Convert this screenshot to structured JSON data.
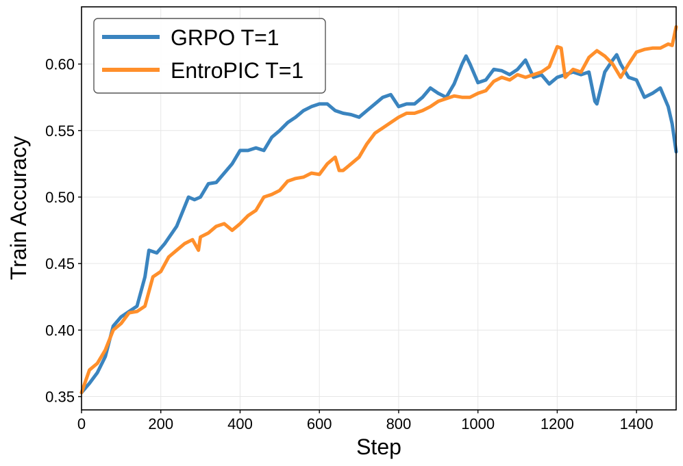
{
  "chart_data": {
    "type": "line",
    "title": "",
    "xlabel": "Step",
    "ylabel": "Train Accuracy",
    "xlim": [
      0,
      1500
    ],
    "ylim": [
      0.34,
      0.643
    ],
    "xticks": [
      0,
      200,
      400,
      600,
      800,
      1000,
      1200,
      1400
    ],
    "xtick_labels": [
      "0",
      "200",
      "400",
      "600",
      "800",
      "1000",
      "1200",
      "1400"
    ],
    "yticks": [
      0.35,
      0.4,
      0.45,
      0.5,
      0.55,
      0.6
    ],
    "ytick_labels": [
      "0.35",
      "0.40",
      "0.45",
      "0.50",
      "0.55",
      "0.60"
    ],
    "grid": true,
    "legend_position": "top-left",
    "series": [
      {
        "name": "GRPO T=1",
        "color": "#3a84bf",
        "x": [
          0,
          20,
          40,
          60,
          80,
          100,
          120,
          140,
          160,
          170,
          190,
          210,
          240,
          270,
          285,
          300,
          320,
          340,
          360,
          380,
          400,
          420,
          440,
          460,
          480,
          500,
          520,
          540,
          560,
          580,
          600,
          620,
          640,
          660,
          680,
          700,
          720,
          740,
          760,
          780,
          800,
          820,
          840,
          860,
          880,
          900,
          920,
          940,
          960,
          970,
          980,
          1000,
          1020,
          1040,
          1060,
          1080,
          1100,
          1120,
          1140,
          1160,
          1180,
          1200,
          1220,
          1240,
          1260,
          1280,
          1295,
          1300,
          1320,
          1340,
          1350,
          1360,
          1380,
          1400,
          1420,
          1440,
          1460,
          1480,
          1490,
          1500
        ],
        "y": [
          0.353,
          0.36,
          0.368,
          0.38,
          0.403,
          0.41,
          0.414,
          0.418,
          0.44,
          0.46,
          0.458,
          0.465,
          0.478,
          0.5,
          0.498,
          0.5,
          0.51,
          0.511,
          0.518,
          0.525,
          0.535,
          0.535,
          0.537,
          0.535,
          0.545,
          0.55,
          0.556,
          0.56,
          0.565,
          0.568,
          0.57,
          0.57,
          0.565,
          0.563,
          0.562,
          0.56,
          0.565,
          0.57,
          0.575,
          0.577,
          0.568,
          0.57,
          0.57,
          0.575,
          0.582,
          0.578,
          0.575,
          0.585,
          0.6,
          0.606,
          0.6,
          0.586,
          0.588,
          0.596,
          0.595,
          0.592,
          0.596,
          0.603,
          0.59,
          0.592,
          0.585,
          0.59,
          0.592,
          0.594,
          0.592,
          0.594,
          0.572,
          0.57,
          0.594,
          0.603,
          0.607,
          0.6,
          0.59,
          0.588,
          0.575,
          0.578,
          0.582,
          0.568,
          0.555,
          0.534
        ]
      },
      {
        "name": "EntroPIC T=1",
        "color": "#ff8f2b",
        "x": [
          0,
          20,
          40,
          60,
          80,
          100,
          120,
          140,
          160,
          180,
          200,
          220,
          240,
          260,
          280,
          295,
          300,
          320,
          340,
          360,
          380,
          400,
          420,
          440,
          460,
          480,
          500,
          520,
          540,
          560,
          580,
          600,
          620,
          640,
          650,
          660,
          680,
          700,
          720,
          740,
          760,
          780,
          800,
          820,
          840,
          860,
          880,
          900,
          920,
          940,
          960,
          980,
          1000,
          1020,
          1040,
          1060,
          1080,
          1100,
          1120,
          1140,
          1160,
          1180,
          1200,
          1210,
          1220,
          1240,
          1260,
          1280,
          1300,
          1320,
          1340,
          1360,
          1380,
          1400,
          1420,
          1440,
          1460,
          1480,
          1490,
          1500
        ],
        "y": [
          0.353,
          0.37,
          0.375,
          0.385,
          0.4,
          0.405,
          0.413,
          0.414,
          0.418,
          0.44,
          0.444,
          0.455,
          0.46,
          0.465,
          0.468,
          0.46,
          0.47,
          0.473,
          0.478,
          0.48,
          0.475,
          0.48,
          0.486,
          0.49,
          0.5,
          0.502,
          0.505,
          0.512,
          0.514,
          0.515,
          0.518,
          0.517,
          0.525,
          0.53,
          0.52,
          0.52,
          0.525,
          0.53,
          0.54,
          0.548,
          0.552,
          0.556,
          0.56,
          0.563,
          0.563,
          0.565,
          0.568,
          0.572,
          0.574,
          0.576,
          0.575,
          0.575,
          0.578,
          0.58,
          0.587,
          0.59,
          0.588,
          0.592,
          0.59,
          0.592,
          0.594,
          0.598,
          0.613,
          0.612,
          0.59,
          0.596,
          0.594,
          0.605,
          0.61,
          0.606,
          0.6,
          0.59,
          0.6,
          0.609,
          0.611,
          0.612,
          0.612,
          0.615,
          0.614,
          0.628
        ]
      }
    ]
  }
}
